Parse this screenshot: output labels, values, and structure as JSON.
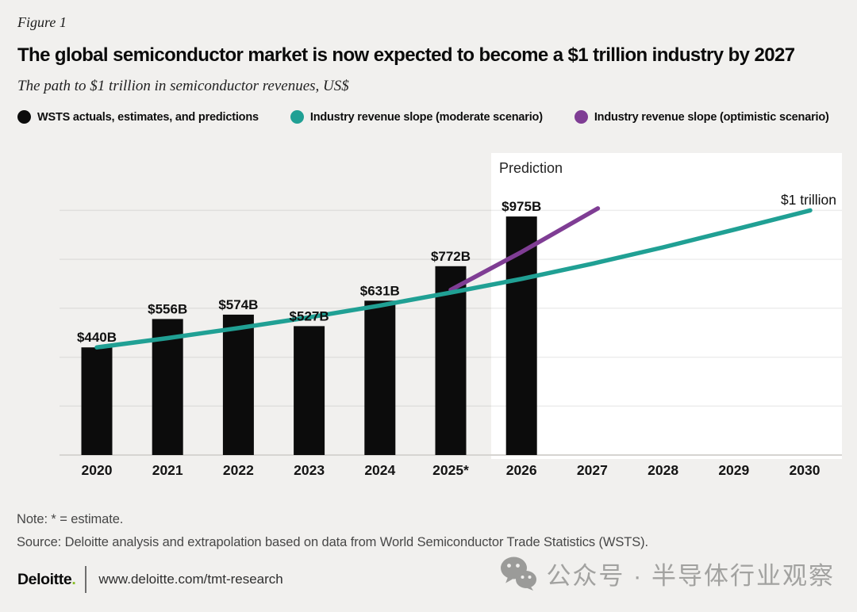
{
  "figure_label": "Figure 1",
  "title": "The global semiconductor market is now expected to become a $1 trillion industry by 2027",
  "subtitle": "The path to $1 trillion in semiconductor revenues, US$",
  "legend": [
    {
      "label": "WSTS actuals, estimates, and predictions",
      "color": "#0C0C0C"
    },
    {
      "label": "Industry revenue slope (moderate scenario)",
      "color": "#20A094"
    },
    {
      "label": "Industry revenue slope (optimistic scenario)",
      "color": "#7F3D94"
    }
  ],
  "chart_data": {
    "type": "bar",
    "title": "The path to $1 trillion in semiconductor revenues, US$",
    "categories": [
      "2020",
      "2021",
      "2022",
      "2023",
      "2024",
      "2025*",
      "2026",
      "2027",
      "2028",
      "2029",
      "2030"
    ],
    "bars": {
      "name": "WSTS actuals, estimates, and predictions",
      "values": [
        440,
        556,
        574,
        527,
        631,
        772,
        975,
        null,
        null,
        null,
        null
      ],
      "labels": [
        "$440B",
        "$556B",
        "$574B",
        "$527B",
        "$631B",
        "$772B",
        "$975B"
      ],
      "color": "#0C0C0C"
    },
    "series": [
      {
        "name": "Industry revenue slope (moderate scenario)",
        "type": "line",
        "color": "#20A094",
        "x": [
          "2020",
          "2021",
          "2022",
          "2023",
          "2024",
          "2025*",
          "2026",
          "2027",
          "2028",
          "2029",
          "2030"
        ],
        "values": [
          440,
          478,
          519,
          563,
          611,
          664,
          720,
          782,
          849,
          921,
          1000
        ]
      },
      {
        "name": "Industry revenue slope (optimistic scenario)",
        "type": "line",
        "color": "#7F3D94",
        "x": [
          "2025*",
          "2026",
          "2027"
        ],
        "values": [
          675,
          830,
          1008
        ]
      }
    ],
    "annotations": [
      {
        "id": "prediction-label",
        "text": "Prediction"
      },
      {
        "id": "one-trillion-label",
        "text": "$1 trillion"
      }
    ],
    "prediction_region": {
      "starts_between": [
        "2025*",
        "2026"
      ],
      "ends_at": "2030",
      "background": "#FFFFFF"
    },
    "ylim": [
      0,
      1245
    ],
    "gridline_values": [
      200,
      400,
      600,
      800,
      1000
    ],
    "grid": "horizontal",
    "legend_position": "top"
  },
  "notes": {
    "note": "Note: * = estimate.",
    "source": "Source: Deloitte analysis and extrapolation based on data from World Semiconductor Trade Statistics (WSTS)."
  },
  "footer": {
    "brand_name": "Deloitte",
    "brand_dot": ".",
    "url": "www.deloitte.com/tmt-research"
  },
  "watermark": {
    "icon": "wechat-icon",
    "text": "公众号 · 半导体行业观察"
  }
}
